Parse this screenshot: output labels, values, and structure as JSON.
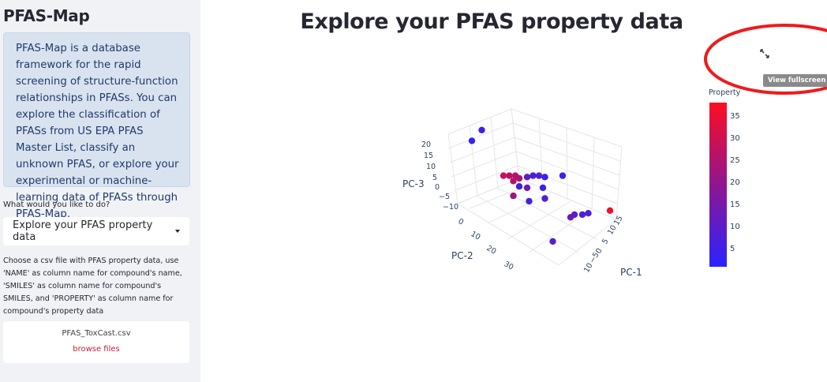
{
  "sidebar": {
    "title": "PFAS-Map",
    "info": "PFAS-Map is a database framework for the rapid screening of structure-function relationships in PFASs. You can explore the classification of PFASs from US EPA PFAS Master List, classify an unknown PFAS, or explore your experimental or machine-learning data of PFASs through PFAS-Map.",
    "question": "What would you like to do?",
    "select_value": "Explore your PFAS property data",
    "help_text": "Choose a csv file with PFAS property data, use 'NAME' as column name for compound's name, 'SMILES' as column name for compound's SMILES, and 'PROPERTY' as column name for compound's property data",
    "file_name": "PFAS_ToxCast.csv",
    "browse_label": "browse files"
  },
  "main": {
    "title": "Explore your PFAS property data",
    "fullscreen_tooltip": "View fullscreen"
  },
  "chart_data": {
    "type": "scatter",
    "colorbar_title": "Property",
    "colorbar_ticks": [
      "35",
      "30",
      "25",
      "20",
      "15",
      "10",
      "5"
    ],
    "color_range": [
      1,
      38
    ],
    "colors": {
      "high": "#ff0d21",
      "mid": "#8f168f",
      "low": "#2a23ff"
    },
    "axis_labels": {
      "x": "PC-1",
      "y": "PC-2",
      "z": "PC-3"
    },
    "tick_labels": {
      "pc3": [
        "20",
        "15",
        "10",
        "5",
        "0",
        "−5",
        "−10"
      ],
      "pc2": [
        "0",
        "10",
        "20",
        "30"
      ],
      "pc1": [
        "15",
        "10",
        "5",
        "0",
        "−5",
        "10"
      ]
    },
    "points": [
      {
        "x": 0.08,
        "y": 0.12,
        "p": 3
      },
      {
        "x": 0.13,
        "y": 0.04,
        "p": 4
      },
      {
        "x": 0.24,
        "y": 0.38,
        "p": 28
      },
      {
        "x": 0.27,
        "y": 0.38,
        "p": 27
      },
      {
        "x": 0.3,
        "y": 0.38,
        "p": 26
      },
      {
        "x": 0.32,
        "y": 0.4,
        "p": 24
      },
      {
        "x": 0.29,
        "y": 0.42,
        "p": 25
      },
      {
        "x": 0.36,
        "y": 0.39,
        "p": 12
      },
      {
        "x": 0.39,
        "y": 0.38,
        "p": 6
      },
      {
        "x": 0.42,
        "y": 0.38,
        "p": 9
      },
      {
        "x": 0.45,
        "y": 0.39,
        "p": 4
      },
      {
        "x": 0.54,
        "y": 0.38,
        "p": 3
      },
      {
        "x": 0.32,
        "y": 0.46,
        "p": 5
      },
      {
        "x": 0.36,
        "y": 0.47,
        "p": 13
      },
      {
        "x": 0.44,
        "y": 0.47,
        "p": 4
      },
      {
        "x": 0.29,
        "y": 0.53,
        "p": 22
      },
      {
        "x": 0.37,
        "y": 0.57,
        "p": 6
      },
      {
        "x": 0.45,
        "y": 0.55,
        "p": 7
      },
      {
        "x": 0.58,
        "y": 0.69,
        "p": 13
      },
      {
        "x": 0.6,
        "y": 0.67,
        "p": 11
      },
      {
        "x": 0.64,
        "y": 0.67,
        "p": 7
      },
      {
        "x": 0.67,
        "y": 0.66,
        "p": 8
      },
      {
        "x": 0.78,
        "y": 0.64,
        "p": 36
      },
      {
        "x": 0.49,
        "y": 0.87,
        "p": 9
      }
    ]
  }
}
